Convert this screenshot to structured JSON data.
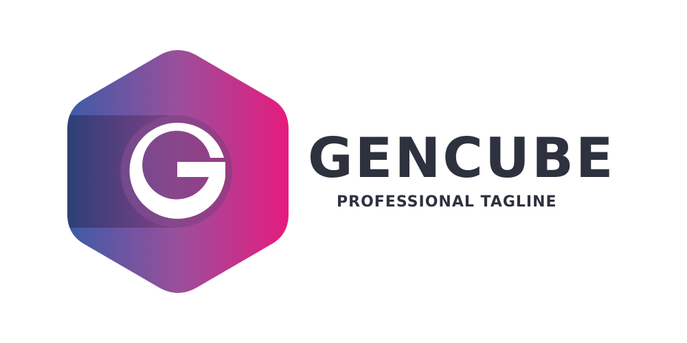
{
  "logo": {
    "monogram": "G",
    "gradient_start": "#3c5ba8",
    "gradient_mid": "#9a4f9b",
    "gradient_end": "#e61b7e",
    "monogram_color": "#ffffff"
  },
  "brand": {
    "name": "GENCUBE",
    "tagline": "PROFESSIONAL TAGLINE",
    "text_color": "#2e323e"
  }
}
